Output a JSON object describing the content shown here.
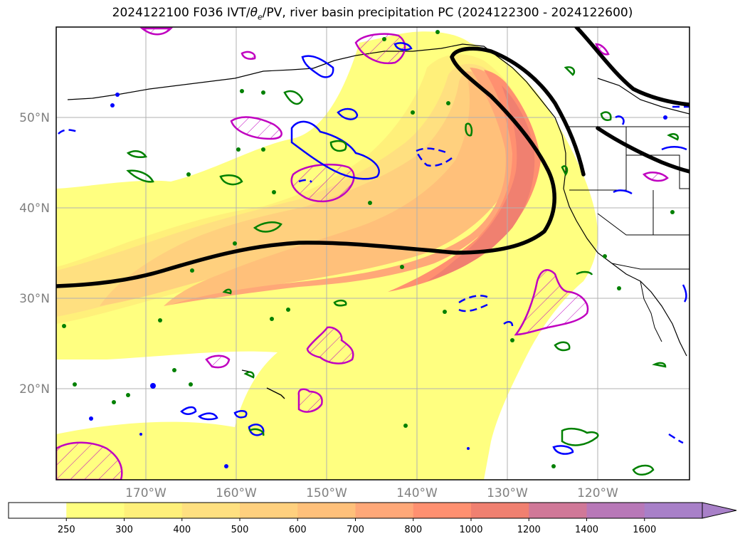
{
  "title": {
    "prefix": "2024122100 F036 IVT/",
    "theta": "θ",
    "theta_sub": "e",
    "suffix": "/PV, river basin precipitation PC (2024122300 - 2024122600)"
  },
  "map": {
    "lat_labels": [
      "50°N",
      "40°N",
      "30°N",
      "20°N"
    ],
    "lon_labels": [
      "170°W",
      "160°W",
      "150°W",
      "140°W",
      "130°W",
      "120°W"
    ],
    "colors": {
      "frame": "#000000",
      "grid": "#b0b0b0",
      "coastline": "#000000",
      "theta_e_contour": "#000000",
      "pv_positive": "#0000ff",
      "pv_anomaly_green": "#008000",
      "precip_pc": "#c000c0"
    }
  },
  "colorbar": {
    "ticks": [
      "250",
      "300",
      "400",
      "500",
      "600",
      "700",
      "800",
      "1000",
      "1200",
      "1400",
      "1600"
    ],
    "colors": [
      "#ffffff",
      "#ffff80",
      "#fff07a",
      "#ffe080",
      "#ffd07e",
      "#ffc07a",
      "#ffa878",
      "#ff9070",
      "#f08070",
      "#d07898",
      "#b878b8",
      "#a880c8"
    ],
    "extend": "max"
  }
}
